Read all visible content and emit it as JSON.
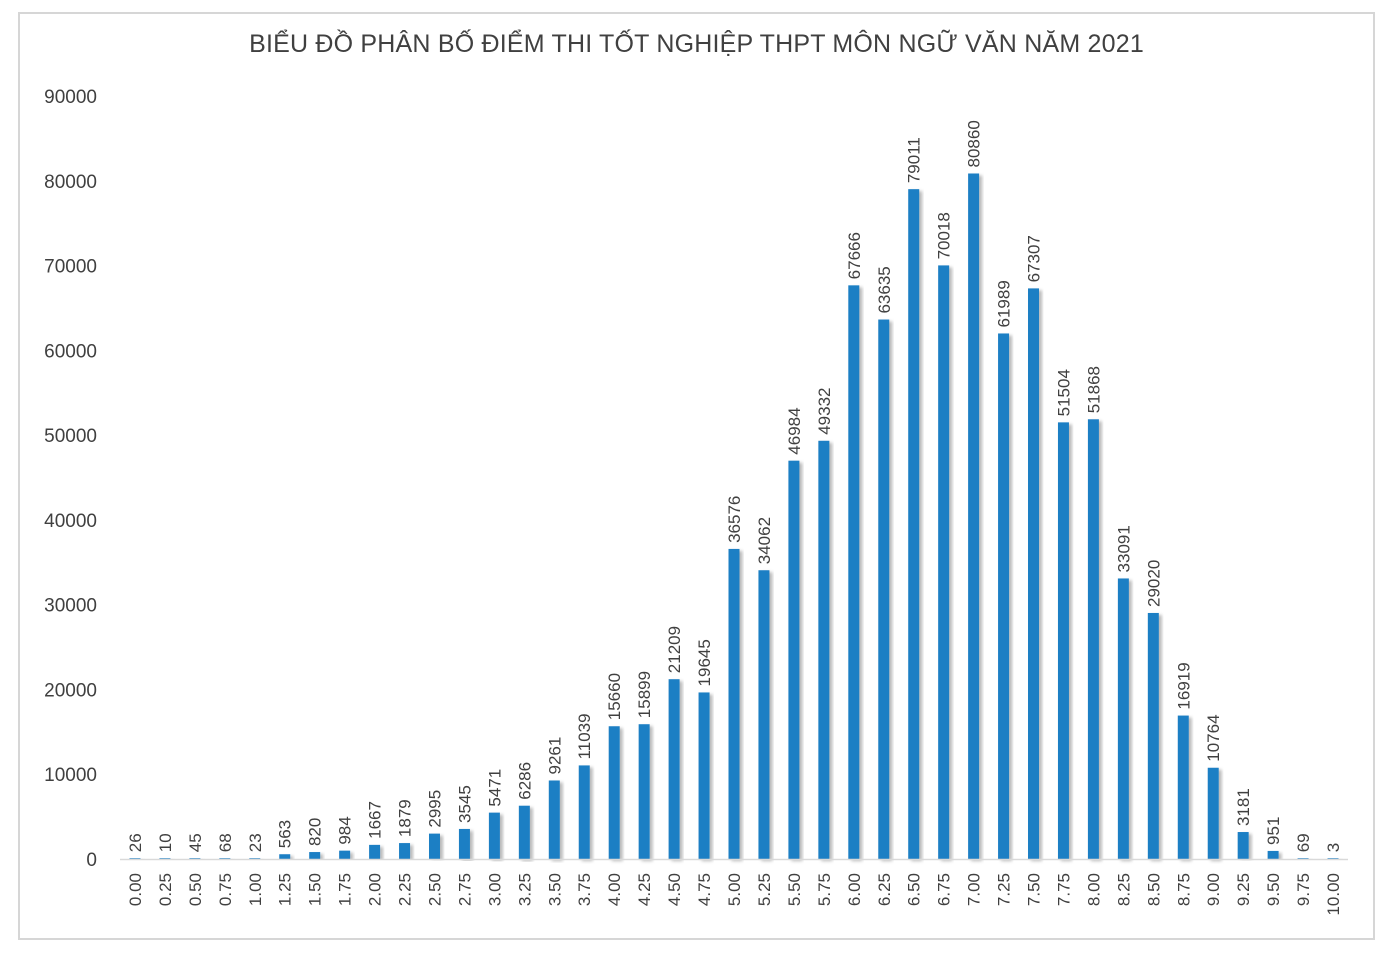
{
  "chart_data": {
    "type": "bar",
    "title": "BIỂU ĐỒ PHÂN BỐ ĐIỂM THI TỐT NGHIỆP THPT MÔN NGỮ VĂN NĂM 2021",
    "xlabel": "",
    "ylabel": "",
    "ylim": [
      0,
      90000
    ],
    "yticks": [
      "0",
      "10000",
      "20000",
      "30000",
      "40000",
      "50000",
      "60000",
      "70000",
      "80000",
      "90000"
    ],
    "grid": false,
    "legend": "none",
    "bar_color": "#1f7fc4",
    "categories": [
      "0.00",
      "0.25",
      "0.50",
      "0.75",
      "1.00",
      "1.25",
      "1.50",
      "1.75",
      "2.00",
      "2.25",
      "2.50",
      "2.75",
      "3.00",
      "3.25",
      "3.50",
      "3.75",
      "4.00",
      "4.25",
      "4.50",
      "4.75",
      "5.00",
      "5.25",
      "5.50",
      "5.75",
      "6.00",
      "6.25",
      "6.50",
      "6.75",
      "7.00",
      "7.25",
      "7.50",
      "7.75",
      "8.00",
      "8.25",
      "8.50",
      "8.75",
      "9.00",
      "9.25",
      "9.50",
      "9.75",
      "10.00"
    ],
    "values": [
      26,
      10,
      45,
      68,
      23,
      563,
      820,
      984,
      1667,
      1879,
      2995,
      3545,
      5471,
      6286,
      9261,
      11039,
      15660,
      15899,
      21209,
      19645,
      36576,
      34062,
      46984,
      49332,
      67666,
      63635,
      79011,
      70018,
      80860,
      61989,
      67307,
      51504,
      51868,
      33091,
      29020,
      16919,
      10764,
      3181,
      951,
      69,
      3
    ]
  }
}
